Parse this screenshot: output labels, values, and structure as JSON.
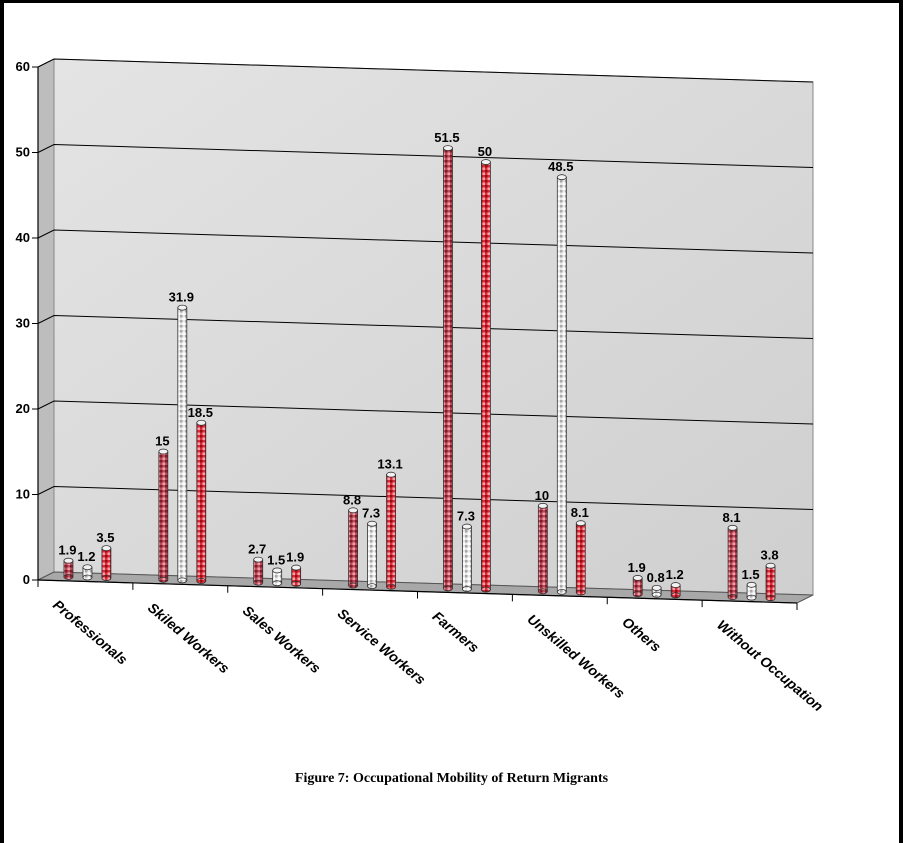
{
  "caption": "Figure 7: Occupational Mobility of Return Migrants",
  "chart_data": {
    "type": "bar",
    "title": "",
    "xlabel": "",
    "ylabel": "",
    "ylim": [
      0,
      60
    ],
    "yticks": [
      0,
      10,
      20,
      30,
      40,
      50,
      60
    ],
    "grid": true,
    "categories": [
      "Professionals",
      "Skilled Workers",
      "Sales Workers",
      "Service Workers",
      "Farmers",
      "Unskilled Workers",
      "Others",
      "Without Occupation"
    ],
    "category_tick_labels": [
      "Professionals",
      "Skiled Workers",
      "Sales Workers",
      "Service Workers",
      "Farmers",
      "Unskilled Workers",
      "Others",
      "Without Occupation"
    ],
    "series": [
      {
        "values": [
          1.9,
          15,
          2.7,
          8.8,
          51.5,
          10,
          1.9,
          8.1
        ],
        "color": "#b03a48",
        "pattern": "checker-dark"
      },
      {
        "values": [
          1.2,
          31.9,
          1.5,
          7.3,
          7.3,
          48.5,
          0.8,
          1.5
        ],
        "color": "#d8d8d8",
        "pattern": "checker-light"
      },
      {
        "values": [
          3.5,
          18.5,
          1.9,
          13.1,
          50,
          8.1,
          1.2,
          3.8
        ],
        "color": "#d92030",
        "pattern": "checker-red"
      }
    ],
    "data_labels": [
      [
        "1.9",
        "15",
        "2.7",
        "8.8",
        "51.5",
        "10",
        "1.9",
        "8.1"
      ],
      [
        "1.2",
        "31.9",
        "1.5",
        "7.3",
        "7.3",
        "48.5",
        "0.8",
        "1.5"
      ],
      [
        "3.5",
        "18.5",
        "1.9",
        "13.1",
        "50",
        "8.1",
        "1.2",
        "3.8"
      ]
    ],
    "wall_color": "#c8c8c8",
    "floor_color": "#a8a8a8",
    "grid_color": "#000000"
  }
}
